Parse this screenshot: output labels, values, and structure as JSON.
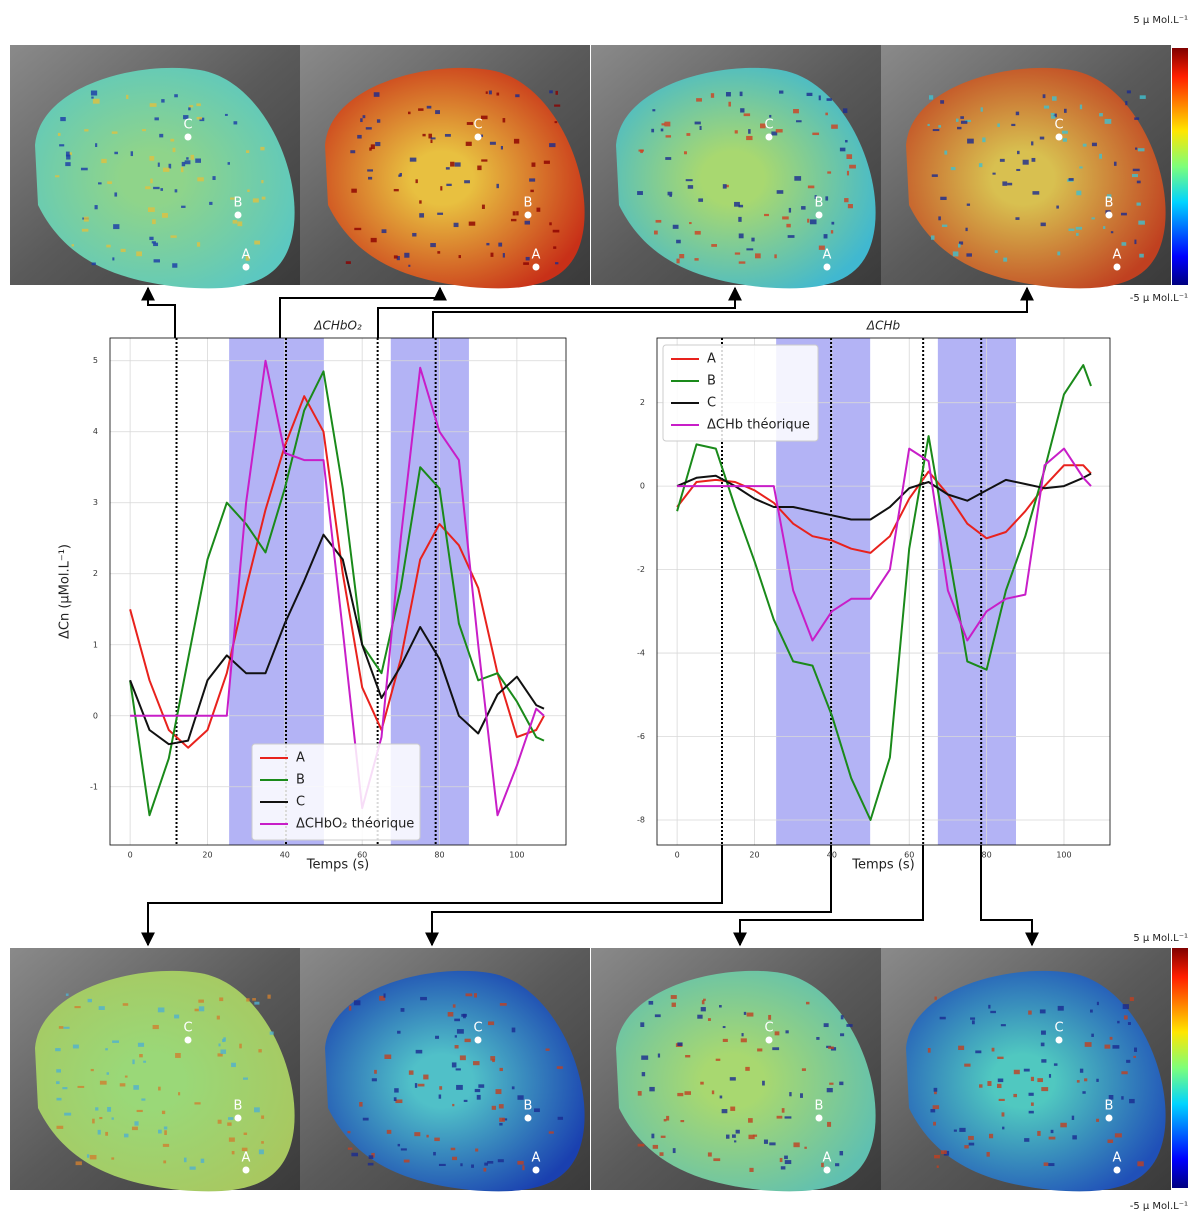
{
  "chart_data": [
    {
      "type": "line",
      "title": "ΔCHbO₂",
      "x_label": "Temps (s)",
      "y_label": "ΔCn (µMol.L⁻¹)",
      "x": [
        0,
        5,
        10,
        15,
        20,
        25,
        30,
        35,
        40,
        45,
        50,
        55,
        60,
        65,
        70,
        75,
        80,
        85,
        90,
        95,
        100,
        105,
        107
      ],
      "series": [
        {
          "name": "A",
          "color": "#e8221d",
          "values": [
            1.5,
            0.5,
            -0.2,
            -0.45,
            -0.2,
            0.6,
            1.8,
            2.9,
            3.8,
            4.5,
            4.0,
            2.0,
            0.4,
            -0.2,
            0.8,
            2.2,
            2.7,
            2.4,
            1.8,
            0.6,
            -0.3,
            -0.2,
            0.0
          ]
        },
        {
          "name": "B",
          "color": "#1a8a1a",
          "values": [
            0.5,
            -1.4,
            -0.6,
            0.8,
            2.2,
            3.0,
            2.7,
            2.3,
            3.2,
            4.3,
            4.85,
            3.2,
            1.0,
            0.6,
            1.8,
            3.5,
            3.2,
            1.3,
            0.5,
            0.6,
            0.2,
            -0.3,
            -0.35
          ]
        },
        {
          "name": "C",
          "color": "#111111",
          "values": [
            0.5,
            -0.2,
            -0.4,
            -0.35,
            0.5,
            0.85,
            0.6,
            0.6,
            1.3,
            1.9,
            2.55,
            2.2,
            1.0,
            0.25,
            0.7,
            1.25,
            0.8,
            0.0,
            -0.25,
            0.3,
            0.55,
            0.15,
            0.1
          ]
        },
        {
          "name": "ΔCHbO₂ théorique",
          "color": "#c81ec8",
          "values": [
            0,
            0,
            0,
            0,
            0,
            0,
            3.0,
            5.0,
            3.7,
            3.6,
            3.6,
            1.2,
            -1.3,
            -0.3,
            2.5,
            4.9,
            4.0,
            3.6,
            1.0,
            -1.4,
            -0.7,
            0.1,
            0
          ]
        }
      ],
      "xlim": [
        -5.2,
        112.7
      ],
      "ylim": [
        -1.82,
        5.32
      ],
      "xticks": [
        0,
        20,
        40,
        60,
        80,
        100
      ],
      "yticks": [
        -1,
        0,
        1,
        2,
        3,
        4,
        5
      ],
      "grid": true,
      "legend": "lower center",
      "spans": [
        [
          25.6,
          50.1
        ],
        [
          67.4,
          87.6
        ]
      ],
      "span_color": "#b3b3f5",
      "vlines": [
        12,
        40.3,
        64,
        79
      ]
    },
    {
      "type": "line",
      "title": "ΔCHb",
      "x_label": "Temps (s)",
      "x": [
        0,
        5,
        10,
        15,
        20,
        25,
        30,
        35,
        40,
        45,
        50,
        55,
        60,
        65,
        70,
        75,
        80,
        85,
        90,
        95,
        100,
        105,
        107
      ],
      "series": [
        {
          "name": "A",
          "color": "#e8221d",
          "values": [
            -0.5,
            0.1,
            0.15,
            0.1,
            -0.1,
            -0.4,
            -0.9,
            -1.2,
            -1.3,
            -1.5,
            -1.6,
            -1.2,
            -0.3,
            0.35,
            -0.2,
            -0.9,
            -1.25,
            -1.1,
            -0.6,
            0.0,
            0.5,
            0.5,
            0.3
          ]
        },
        {
          "name": "B",
          "color": "#1a8a1a",
          "values": [
            -0.6,
            1.0,
            0.9,
            -0.5,
            -1.8,
            -3.2,
            -4.2,
            -4.3,
            -5.5,
            -7.0,
            -8.0,
            -6.5,
            -1.5,
            1.2,
            -1.5,
            -4.2,
            -4.4,
            -2.5,
            -1.2,
            0.4,
            2.2,
            2.9,
            2.4
          ]
        },
        {
          "name": "C",
          "color": "#111111",
          "values": [
            0,
            0.2,
            0.25,
            0,
            -0.3,
            -0.5,
            -0.5,
            -0.6,
            -0.7,
            -0.8,
            -0.8,
            -0.5,
            -0.05,
            0.1,
            -0.2,
            -0.35,
            -0.1,
            0.15,
            0.05,
            -0.05,
            0.0,
            0.2,
            0.3
          ]
        },
        {
          "name": "ΔCHb théorique",
          "color": "#c81ec8",
          "values": [
            0,
            0,
            0,
            0,
            0,
            0,
            -2.5,
            -3.7,
            -3.0,
            -2.7,
            -2.7,
            -2.0,
            0.9,
            0.6,
            -2.5,
            -3.7,
            -3.0,
            -2.7,
            -2.6,
            0.5,
            0.9,
            0.2,
            0
          ]
        }
      ],
      "xlim": [
        -5.2,
        111.9
      ],
      "ylim": [
        -8.6,
        3.55
      ],
      "xticks": [
        0,
        20,
        40,
        60,
        80,
        100
      ],
      "yticks": [
        -8,
        -6,
        -4,
        -2,
        0,
        2
      ],
      "grid": true,
      "legend": "upper left",
      "spans": [
        [
          25.6,
          49.9
        ],
        [
          67.4,
          87.6
        ]
      ],
      "span_color": "#b3b3f5",
      "vlines": [
        11.6,
        39.8,
        63.6,
        78.6
      ]
    }
  ],
  "markers": [
    "A",
    "B",
    "C"
  ],
  "colorbars": [
    {
      "max_label": "5 µ Mol.L⁻¹",
      "min_label": "-5 µ Mol.L⁻¹"
    },
    {
      "max_label": "5 µ Mol.L⁻¹",
      "min_label": "-5 µ Mol.L⁻¹"
    }
  ]
}
